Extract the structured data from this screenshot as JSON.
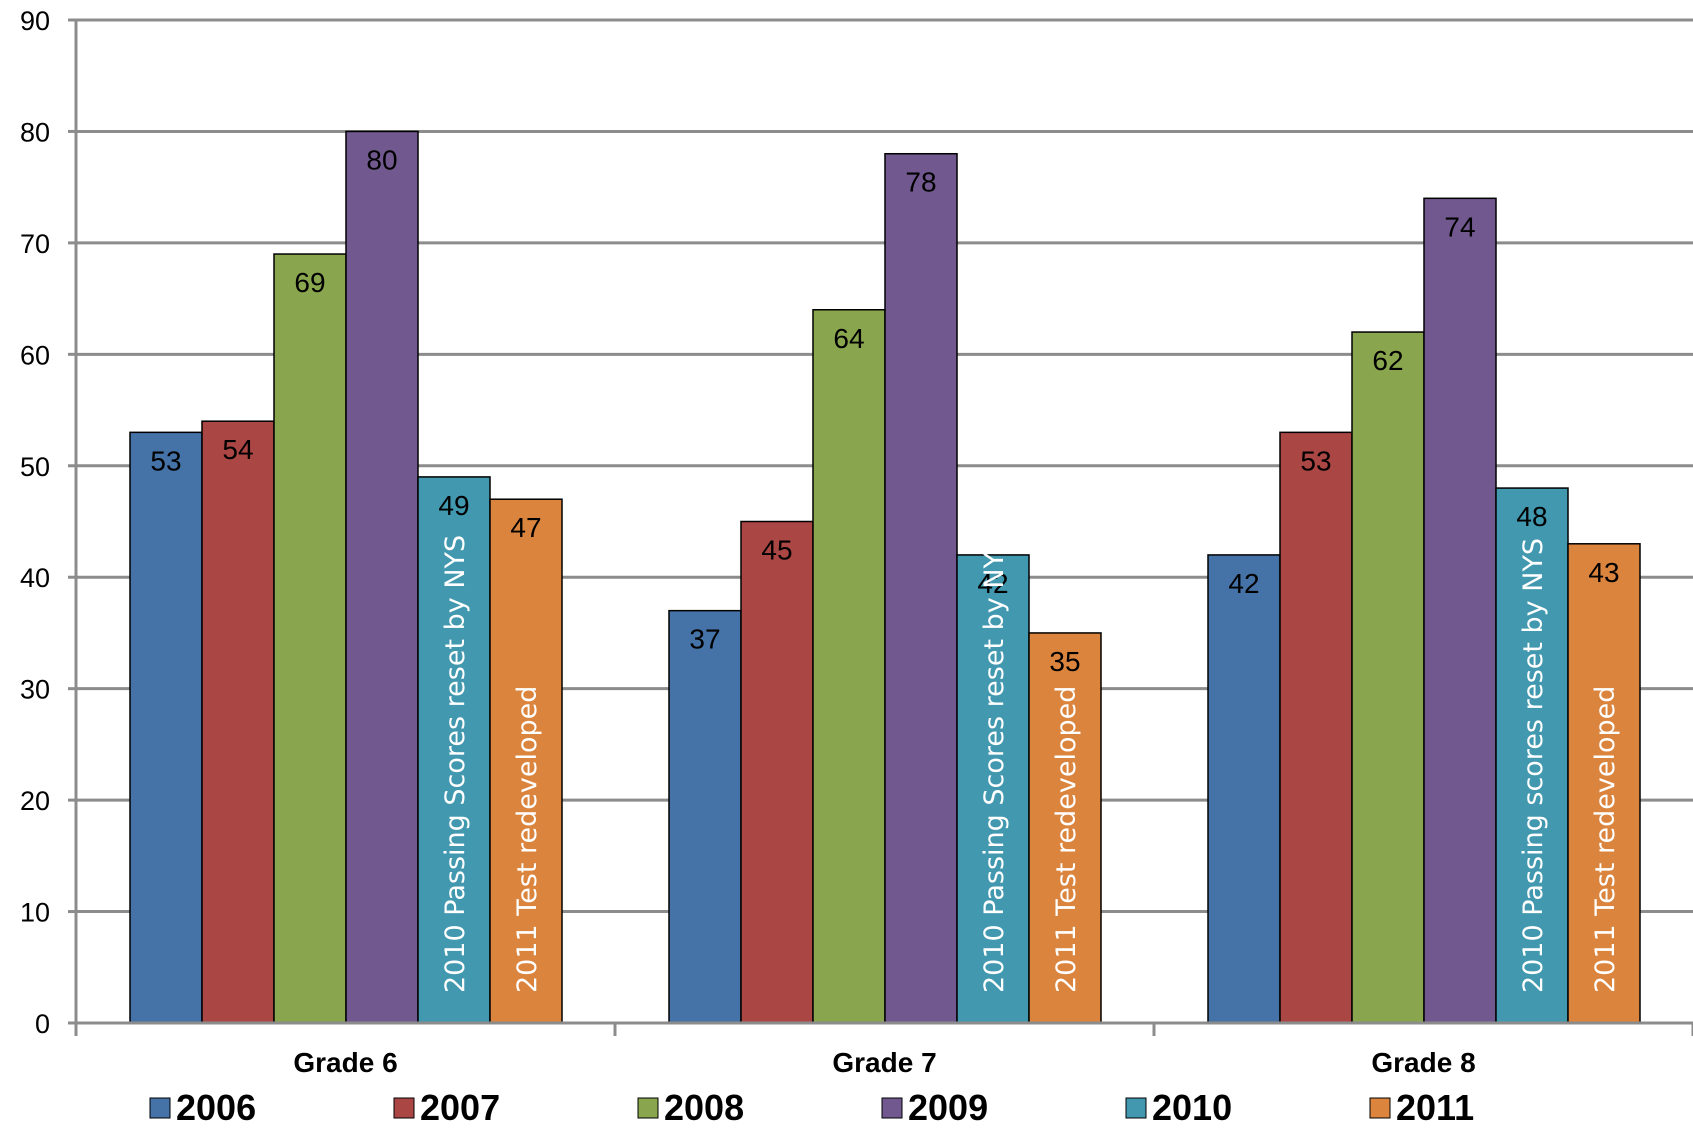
{
  "chart_data": {
    "type": "bar",
    "title": "",
    "xlabel": "",
    "ylabel": "",
    "ylim": [
      0,
      90
    ],
    "yticks": [
      0,
      10,
      20,
      30,
      40,
      50,
      60,
      70,
      80,
      90
    ],
    "grid": true,
    "legend_position": "bottom",
    "categories": [
      "Grade 6",
      "Grade 7",
      "Grade 8"
    ],
    "series": [
      {
        "name": "2006",
        "color": "#4572a7",
        "values": [
          53,
          37,
          42
        ]
      },
      {
        "name": "2007",
        "color": "#aa4643",
        "values": [
          54,
          45,
          53
        ]
      },
      {
        "name": "2008",
        "color": "#89a54e",
        "values": [
          69,
          64,
          62
        ]
      },
      {
        "name": "2009",
        "color": "#71588f",
        "values": [
          80,
          78,
          74
        ]
      },
      {
        "name": "2010",
        "color": "#4198af",
        "values": [
          49,
          42,
          48
        ]
      },
      {
        "name": "2011",
        "color": "#db843d",
        "values": [
          47,
          35,
          43
        ]
      }
    ],
    "annotations": [
      {
        "series": "2010",
        "category": "Grade 6",
        "text": "2010 Passing Scores reset by NYS"
      },
      {
        "series": "2011",
        "category": "Grade 6",
        "text": "2011 Test redeveloped"
      },
      {
        "series": "2010",
        "category": "Grade 7",
        "text": "2010 Passing Scores reset by NYS"
      },
      {
        "series": "2011",
        "category": "Grade 7",
        "text": "2011 Test redeveloped"
      },
      {
        "series": "2010",
        "category": "Grade 8",
        "text": "2010 Passing scores reset by NYS"
      },
      {
        "series": "2011",
        "category": "Grade 8",
        "text": "2011 Test redeveloped"
      }
    ]
  }
}
